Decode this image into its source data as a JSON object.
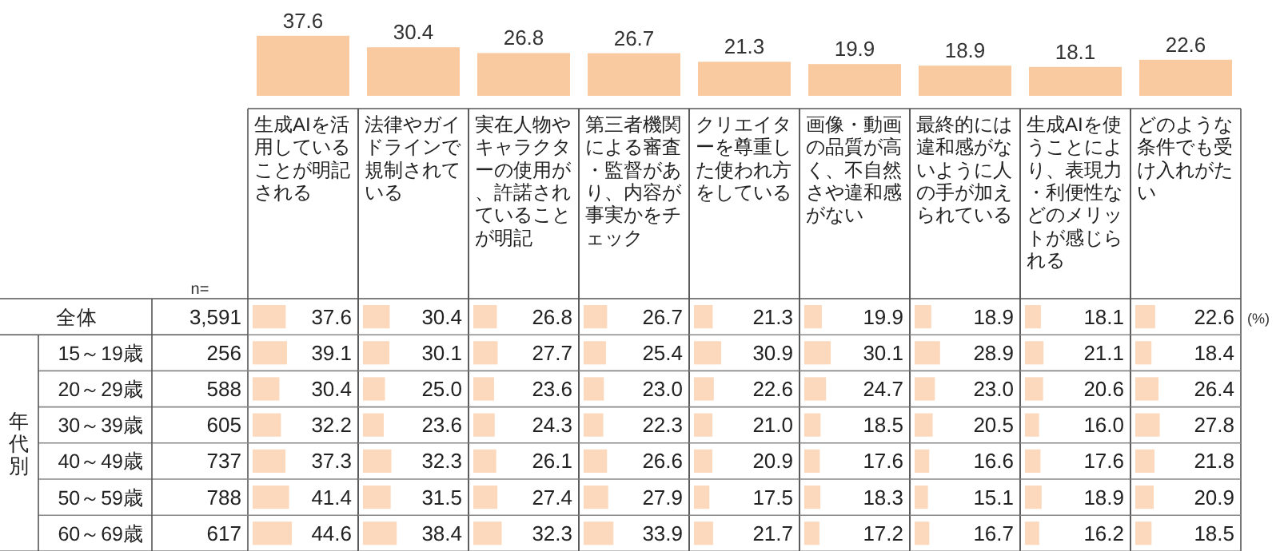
{
  "chart_data": [
    {
      "type": "bar",
      "categories": [
        null,
        null,
        null,
        null,
        null,
        null,
        null,
        null,
        null
      ],
      "values": [
        37.6,
        30.4,
        26.8,
        26.7,
        21.3,
        19.9,
        18.9,
        18.1,
        22.6
      ],
      "value_labels": [
        "37.6",
        "30.4",
        "26.8",
        "26.7",
        "21.3",
        "19.9",
        "18.9",
        "18.1",
        "22.6"
      ],
      "color": "#f9c9a0"
    },
    {
      "type": "bar",
      "orientation": "horizontal",
      "title": "生成AIを活用していることが明記される",
      "categories": [
        "全体",
        "15～19歳",
        "20～29歳",
        "30～39歳",
        "40～49歳",
        "50～59歳",
        "60～69歳"
      ],
      "values": [
        37.6,
        39.1,
        30.4,
        32.2,
        37.3,
        41.4,
        44.6
      ],
      "value_labels": [
        "37.6",
        "39.1",
        "30.4",
        "32.2",
        "37.3",
        "41.4",
        "44.6"
      ],
      "color": "#fcd9bd",
      "tick_labels": "y",
      "annotations": [
        "n=",
        "3,591",
        "256",
        "588",
        "605",
        "737",
        "788",
        "617",
        "年代別"
      ]
    },
    {
      "type": "bar",
      "orientation": "horizontal",
      "title": "法律やガイドラインで規制されている",
      "categories": [
        null,
        null,
        null,
        null,
        null,
        null,
        null
      ],
      "values": [
        30.4,
        30.1,
        25.0,
        23.6,
        32.3,
        31.5,
        38.4
      ],
      "value_labels": [
        "30.4",
        "30.1",
        "25.0",
        "23.6",
        "32.3",
        "31.5",
        "38.4"
      ],
      "color": "#fcd9bd",
      "tick_labels": false
    },
    {
      "type": "bar",
      "orientation": "horizontal",
      "title": "実在人物やキャラクターの使用が、許諾されていることが明記",
      "categories": [
        null,
        null,
        null,
        null,
        null,
        null,
        null
      ],
      "values": [
        26.8,
        27.7,
        23.6,
        24.3,
        26.1,
        27.4,
        32.3
      ],
      "value_labels": [
        "26.8",
        "27.7",
        "23.6",
        "24.3",
        "26.1",
        "27.4",
        "32.3"
      ],
      "color": "#fcd9bd",
      "tick_labels": false
    },
    {
      "type": "bar",
      "orientation": "horizontal",
      "title": "第三者機関による審査・監督があり、内容が事実かをチェック",
      "categories": [
        null,
        null,
        null,
        null,
        null,
        null,
        null
      ],
      "values": [
        26.7,
        25.4,
        23.0,
        22.3,
        26.6,
        27.9,
        33.9
      ],
      "value_labels": [
        "26.7",
        "25.4",
        "23.0",
        "22.3",
        "26.6",
        "27.9",
        "33.9"
      ],
      "color": "#fcd9bd",
      "tick_labels": false
    },
    {
      "type": "bar",
      "orientation": "horizontal",
      "title": "クリエイターを尊重した使われ方をしている",
      "categories": [
        null,
        null,
        null,
        null,
        null,
        null,
        null
      ],
      "values": [
        21.3,
        30.9,
        22.6,
        21.0,
        20.9,
        17.5,
        21.7
      ],
      "value_labels": [
        "21.3",
        "30.9",
        "22.6",
        "21.0",
        "20.9",
        "17.5",
        "21.7"
      ],
      "color": "#fcd9bd",
      "tick_labels": false
    },
    {
      "type": "bar",
      "orientation": "horizontal",
      "title": "画像・動画の品質が高く、不自然さや違和感がない",
      "categories": [
        null,
        null,
        null,
        null,
        null,
        null,
        null
      ],
      "values": [
        19.9,
        30.1,
        24.7,
        18.5,
        17.6,
        18.3,
        17.2
      ],
      "value_labels": [
        "19.9",
        "30.1",
        "24.7",
        "18.5",
        "17.6",
        "18.3",
        "17.2"
      ],
      "color": "#fcd9bd",
      "tick_labels": false
    },
    {
      "type": "bar",
      "orientation": "horizontal",
      "title": "最終的には違和感がないように人の手が加えられている",
      "categories": [
        null,
        null,
        null,
        null,
        null,
        null,
        null
      ],
      "values": [
        18.9,
        28.9,
        23.0,
        20.5,
        16.6,
        15.1,
        16.7
      ],
      "value_labels": [
        "18.9",
        "28.9",
        "23.0",
        "20.5",
        "16.6",
        "15.1",
        "16.7"
      ],
      "color": "#fcd9bd",
      "tick_labels": false
    },
    {
      "type": "bar",
      "orientation": "horizontal",
      "title": "生成AIを使うことにより、表現力・利便性などのメリットが感じられる",
      "categories": [
        null,
        null,
        null,
        null,
        null,
        null,
        null
      ],
      "values": [
        18.1,
        21.1,
        20.6,
        16.0,
        17.6,
        18.9,
        16.2
      ],
      "value_labels": [
        "18.1",
        "21.1",
        "20.6",
        "16.0",
        "17.6",
        "18.9",
        "16.2"
      ],
      "color": "#fcd9bd",
      "tick_labels": false
    },
    {
      "type": "bar",
      "orientation": "horizontal",
      "title": "どのような条件でも受け入れがたい",
      "categories": [
        null,
        null,
        null,
        null,
        null,
        null,
        null
      ],
      "values": [
        22.6,
        18.4,
        26.4,
        27.8,
        21.8,
        20.9,
        18.5
      ],
      "value_labels": [
        "22.6",
        "18.4",
        "26.4",
        "27.8",
        "21.8",
        "20.9",
        "18.5"
      ],
      "color": "#fcd9bd",
      "tick_labels": false,
      "annotations": [
        "(%)"
      ]
    }
  ]
}
